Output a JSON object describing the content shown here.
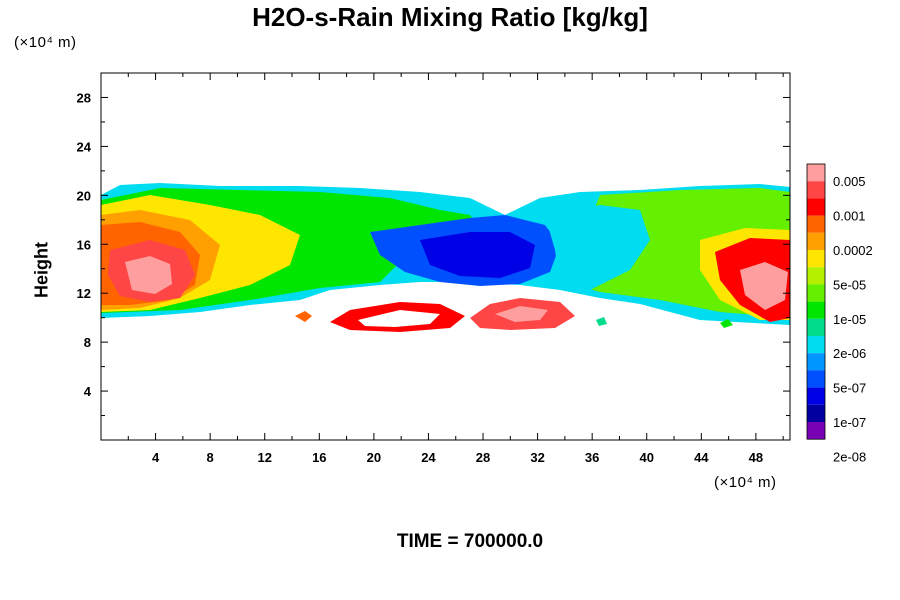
{
  "chart_data": {
    "type": "heatmap",
    "title": "H2O-s-Rain Mixing Ratio [kg/kg]",
    "ylabel": "Height",
    "xlabel": "",
    "y_unit": "(×10⁴ m)",
    "x_unit": "(×10⁴ m)",
    "footer": "TIME = 700000.0",
    "xlim": [
      0,
      50.5
    ],
    "ylim": [
      0,
      30
    ],
    "x_ticks": [
      4,
      8,
      12,
      16,
      20,
      24,
      28,
      32,
      36,
      40,
      44,
      48
    ],
    "y_ticks": [
      4,
      8,
      12,
      16,
      20,
      24,
      28
    ],
    "grid": false,
    "legend": {
      "placement": "right",
      "labels": [
        "0.005",
        "0.001",
        "0.0002",
        "5e-05",
        "1e-05",
        "2e-06",
        "5e-07",
        "1e-07",
        "2e-08"
      ],
      "colors": [
        "#ff9e9e",
        "#ff4646",
        "#ff0000",
        "#ff6400",
        "#ffa000",
        "#ffe600",
        "#b4f000",
        "#64f000",
        "#00e600",
        "#00dc8c",
        "#00dcf0",
        "#0096ff",
        "#0050ff",
        "#0000e6",
        "#0000a0",
        "#7800b4"
      ]
    }
  }
}
